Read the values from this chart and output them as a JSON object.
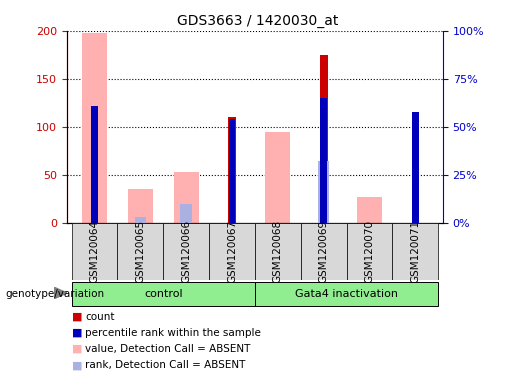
{
  "title": "GDS3663 / 1420030_at",
  "samples": [
    "GSM120064",
    "GSM120065",
    "GSM120066",
    "GSM120067",
    "GSM120068",
    "GSM120069",
    "GSM120070",
    "GSM120071"
  ],
  "count": [
    null,
    null,
    null,
    110,
    null,
    175,
    null,
    null
  ],
  "percentile_rank": [
    61,
    null,
    null,
    54,
    null,
    65,
    null,
    57.5
  ],
  "value_absent": [
    198,
    35,
    53,
    null,
    95,
    null,
    27,
    null
  ],
  "rank_absent": [
    null,
    3,
    10,
    null,
    null,
    32,
    null,
    null
  ],
  "left_ylim": [
    0,
    200
  ],
  "right_ylim": [
    0,
    100
  ],
  "left_yticks": [
    0,
    50,
    100,
    150,
    200
  ],
  "right_yticks": [
    0,
    25,
    50,
    75,
    100
  ],
  "right_yticklabels": [
    "0%",
    "25%",
    "50%",
    "75%",
    "100%"
  ],
  "left_color": "#cc0000",
  "right_color": "#0000cc",
  "count_color": "#cc0000",
  "percentile_color": "#0000bb",
  "value_absent_color": "#ffb0b0",
  "rank_absent_color": "#aab0e0",
  "plot_bg": "#d8d8d8",
  "green_color": "#90ee90",
  "genotype_label": "genotype/variation",
  "group_labels": [
    "control",
    "Gata4 inactivation"
  ],
  "group_ranges": [
    [
      0,
      4
    ],
    [
      4,
      8
    ]
  ],
  "legend_items": [
    {
      "label": "count",
      "color": "#cc0000"
    },
    {
      "label": "percentile rank within the sample",
      "color": "#0000bb"
    },
    {
      "label": "value, Detection Call = ABSENT",
      "color": "#ffb0b0"
    },
    {
      "label": "rank, Detection Call = ABSENT",
      "color": "#aab0e0"
    }
  ]
}
